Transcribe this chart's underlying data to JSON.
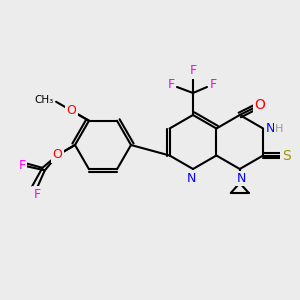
{
  "bg_color": "#ececec",
  "bond_color": "#000000",
  "colors": {
    "N": "#0000ff",
    "O": "#ff0000",
    "F": "#ff00ff",
    "S": "#999900",
    "H": "#666666",
    "C": "#000000"
  },
  "font_size": 9,
  "lw": 1.5
}
